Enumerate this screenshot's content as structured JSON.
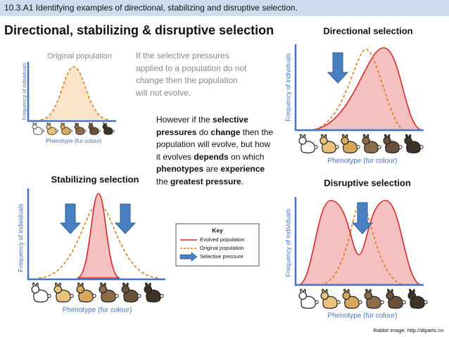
{
  "header": {
    "title": "10.3.A1 Identifying examples of directional, stabilizing and disruptive selection."
  },
  "title": "Directional, stabilizing & disruptive selection",
  "original_panel": {
    "label": "Original population",
    "y_axis": "Frequency of individuals",
    "x_axis": "Phenotype (fur colour)"
  },
  "paragraphs": [
    {
      "segments": [
        {
          "text": "If the selective pressures applied to a population do not change then the population will not evolve.",
          "bold": false
        }
      ]
    },
    {
      "segments": [
        {
          "text": "However if the ",
          "bold": false
        },
        {
          "text": "selective pressures",
          "bold": true
        },
        {
          "text": " do ",
          "bold": false
        },
        {
          "text": "change",
          "bold": true
        },
        {
          "text": " then the population will evolve, but how it evolves ",
          "bold": false
        },
        {
          "text": "depends",
          "bold": true
        },
        {
          "text": " on which ",
          "bold": false
        },
        {
          "text": "phenotypes",
          "bold": true
        },
        {
          "text": " are ",
          "bold": false
        },
        {
          "text": "experience",
          "bold": true
        },
        {
          "text": " the ",
          "bold": false
        },
        {
          "text": "greatest pressure",
          "bold": true
        },
        {
          "text": ".",
          "bold": false
        }
      ]
    }
  ],
  "panels": [
    {
      "title": "Directional selection",
      "y_axis": "Frequency of individuals",
      "x_axis": "Phenotype (fur colour)"
    },
    {
      "title": "Stabilizing selection",
      "y_axis": "Frequency of individuals",
      "x_axis": "Phenotype (fur colour)"
    },
    {
      "title": "Disruptive selection",
      "y_axis": "Frequency of individuals",
      "x_axis": "Phenotype (fur colour)"
    }
  ],
  "key": {
    "title": "Key",
    "items": [
      "Evolved population",
      "Original population",
      "Selective pressure"
    ]
  },
  "credit": "Rabbit image: http://diparts.co"
}
